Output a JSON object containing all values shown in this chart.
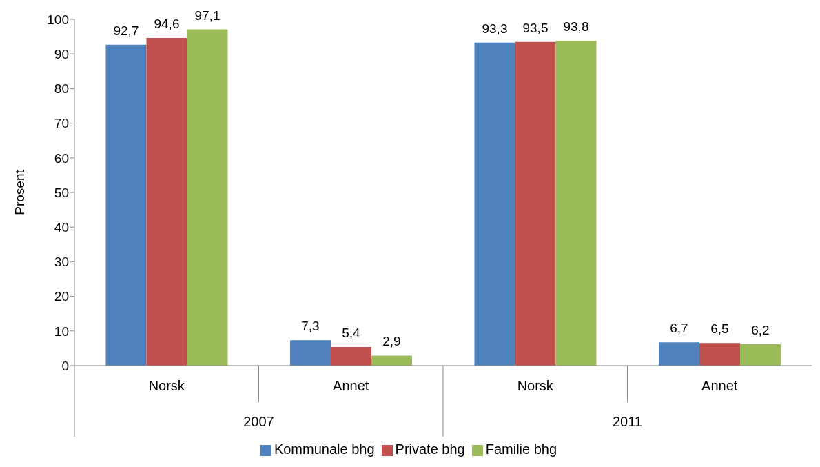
{
  "chart_data": {
    "type": "bar",
    "ylabel": "Prosent",
    "categories": [
      "Norsk",
      "Annet",
      "Norsk",
      "Annet"
    ],
    "annotations": [
      "2007",
      "2011"
    ],
    "series": [
      {
        "name": "Kommunale bhg",
        "color": "#4f81bd",
        "values": [
          92.7,
          7.3,
          93.3,
          6.7
        ],
        "value_labels": [
          "92,7",
          "7,3",
          "93,3",
          "6,7"
        ]
      },
      {
        "name": "Private bhg",
        "color": "#c0504d",
        "values": [
          94.6,
          5.4,
          93.5,
          6.5
        ],
        "value_labels": [
          "94,6",
          "5,4",
          "93,5",
          "6,5"
        ]
      },
      {
        "name": "Familie bhg",
        "color": "#9bbb59",
        "values": [
          97.1,
          2.9,
          93.8,
          6.2
        ],
        "value_labels": [
          "97,1",
          "2,9",
          "93,8",
          "6,2"
        ]
      }
    ],
    "ylim": [
      0,
      100
    ],
    "yticks": [
      0,
      10,
      20,
      30,
      40,
      50,
      60,
      70,
      80,
      90,
      100
    ],
    "grid": false,
    "legend": "bottom"
  }
}
